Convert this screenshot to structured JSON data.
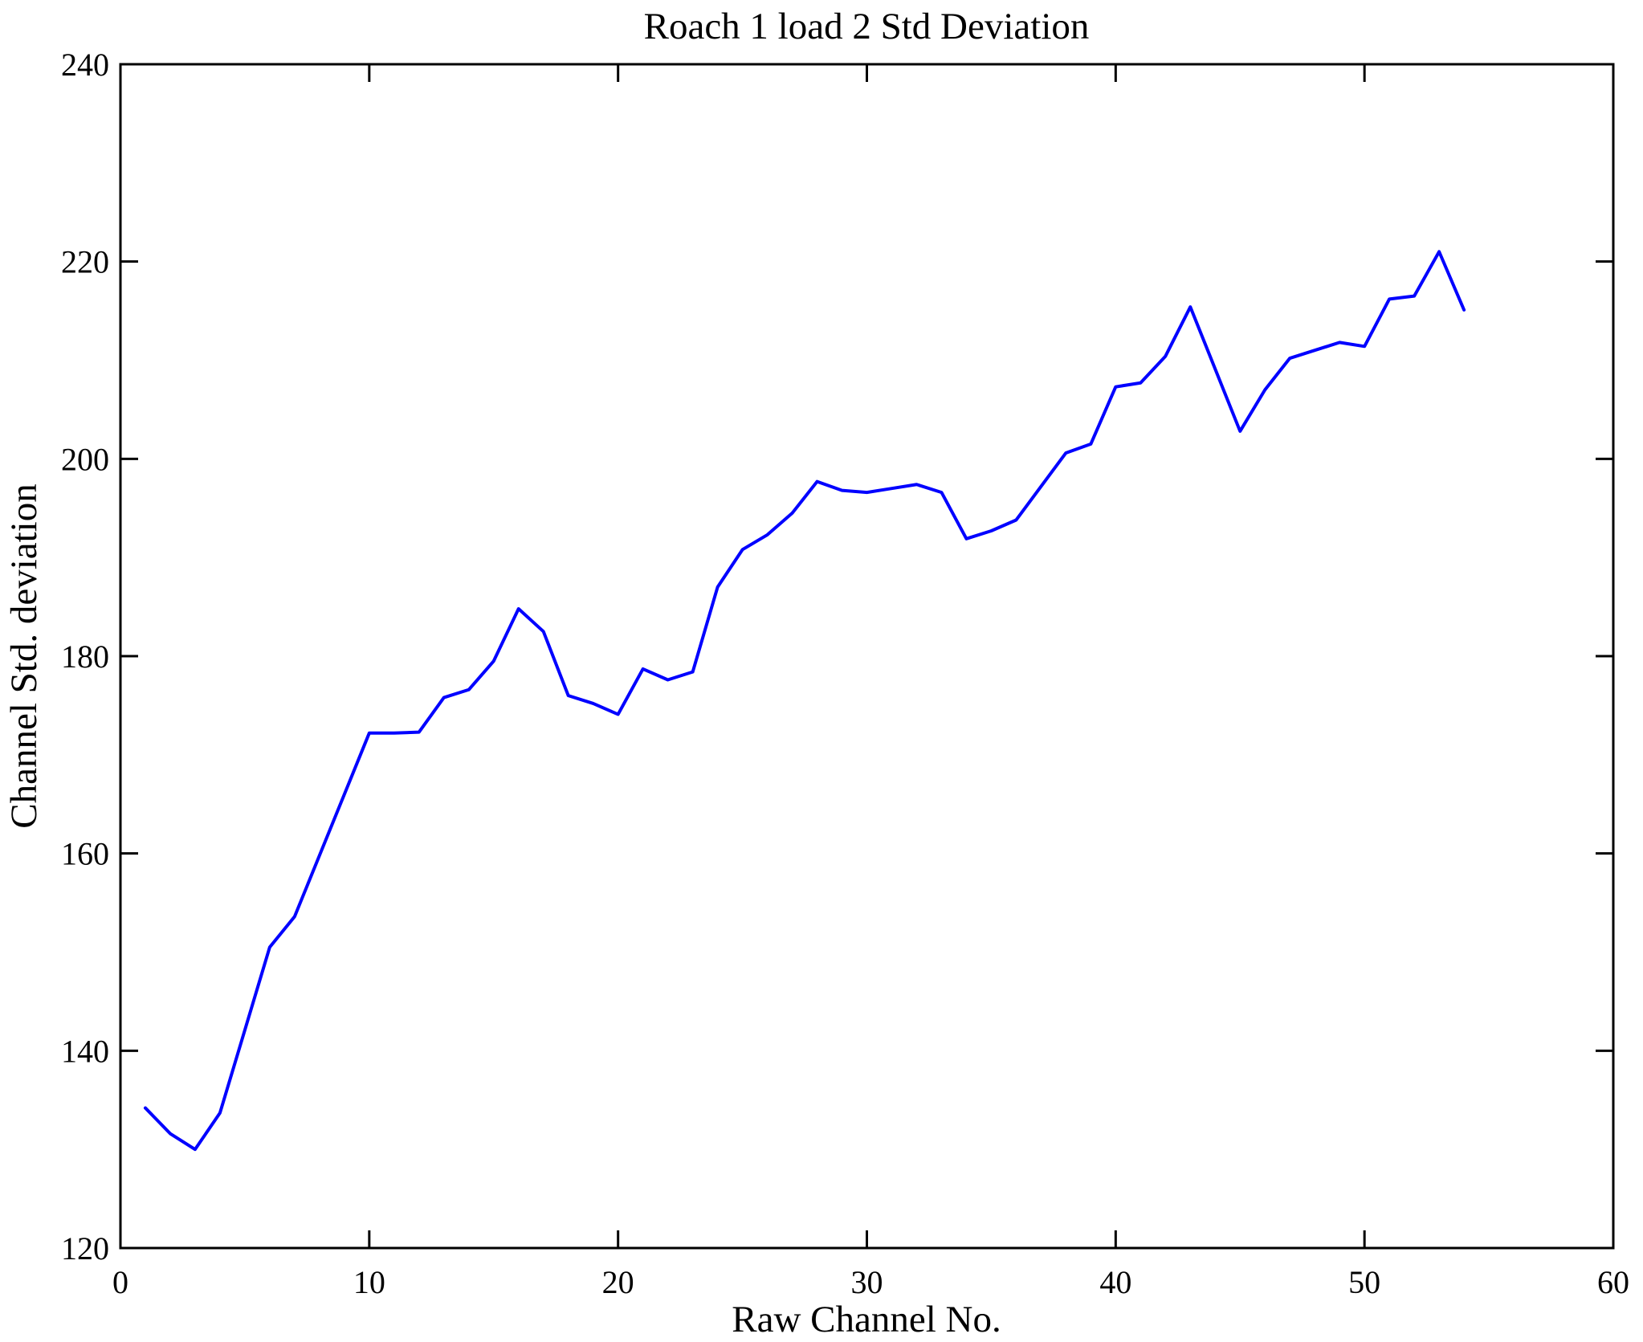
{
  "figure": {
    "title": "Roach 1 load 2 Std Deviation",
    "xlabel": "Raw Channel No.",
    "ylabel": "Channel Std. deviation"
  },
  "chart_data": {
    "type": "line",
    "title": "Roach 1 load 2 Std Deviation",
    "xlabel": "Raw Channel No.",
    "ylabel": "Channel Std. deviation",
    "xlim": [
      0,
      60
    ],
    "ylim": [
      120,
      240
    ],
    "xticks": [
      0,
      10,
      20,
      30,
      40,
      50,
      60
    ],
    "yticks": [
      120,
      140,
      160,
      180,
      200,
      220,
      240
    ],
    "grid": false,
    "legend_position": "none",
    "frame": "box",
    "line_color": "#0000ff",
    "axis_color": "#000000",
    "background_color": "#ffffff",
    "series": [
      {
        "x": [
          1,
          2,
          3,
          4,
          5,
          6,
          7,
          8,
          9,
          10,
          11,
          12,
          13,
          14,
          15,
          16,
          17,
          18,
          19,
          20,
          21,
          22,
          23,
          24,
          25,
          26,
          27,
          28,
          29,
          30,
          31,
          32,
          33,
          34,
          35,
          36,
          37,
          38,
          39,
          40,
          41,
          42,
          43,
          44,
          45,
          46,
          47,
          48,
          49,
          50,
          51,
          52,
          53,
          54
        ],
        "y": [
          134.2,
          131.6,
          130.0,
          133.7,
          142.1,
          150.5,
          153.6,
          159.8,
          166.0,
          172.2,
          172.2,
          172.3,
          175.8,
          176.6,
          179.5,
          184.8,
          182.5,
          176.0,
          175.2,
          174.1,
          178.7,
          177.6,
          178.4,
          187.0,
          190.8,
          192.3,
          194.5,
          197.7,
          196.8,
          196.6,
          197.0,
          197.4,
          196.6,
          191.9,
          192.7,
          193.8,
          197.2,
          200.6,
          201.5,
          207.3,
          207.7,
          210.4,
          215.4,
          209.1,
          202.8,
          207.0,
          210.2,
          211.0,
          211.8,
          211.4,
          216.2,
          216.5,
          221.0,
          215.1
        ]
      }
    ]
  }
}
